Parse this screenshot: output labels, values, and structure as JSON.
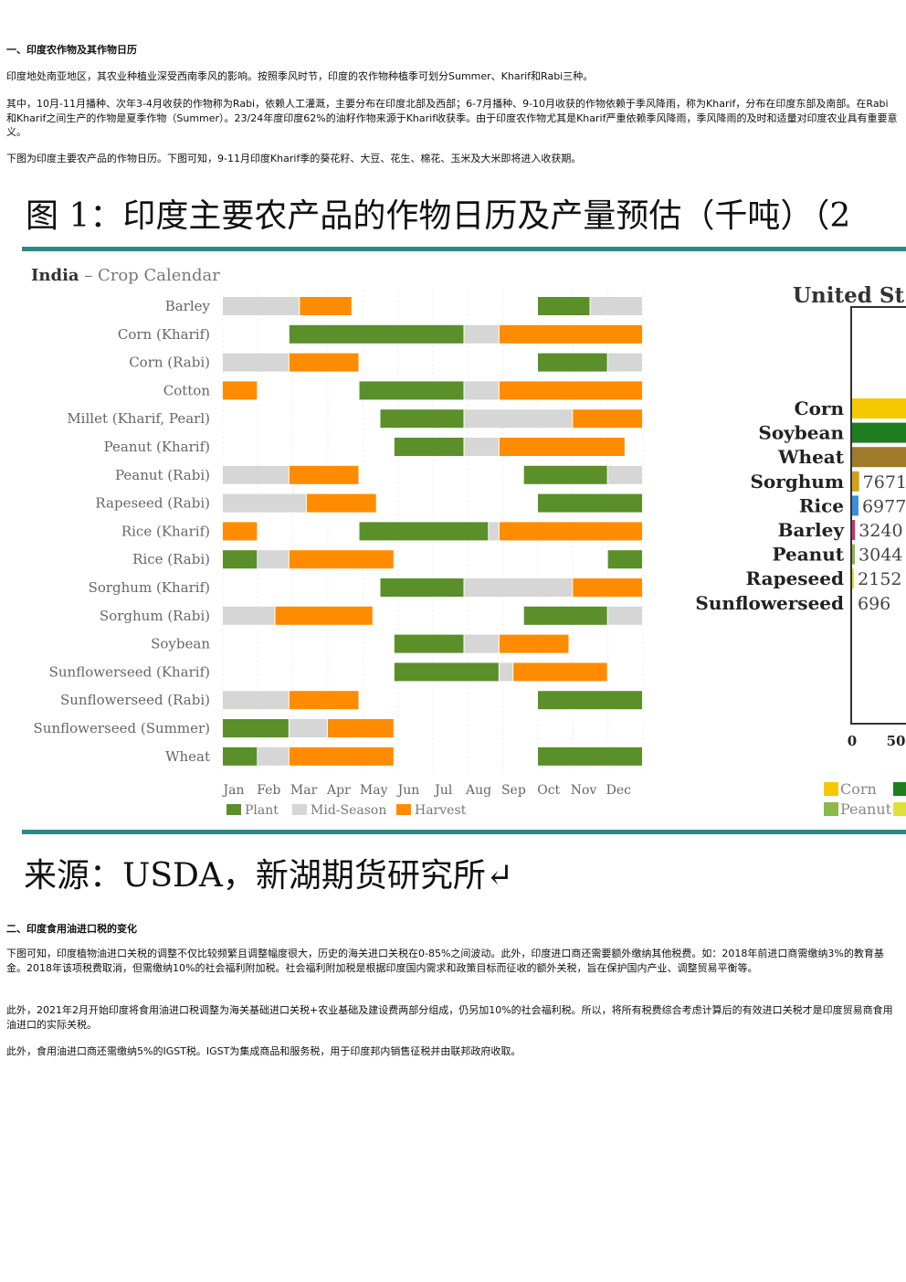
{
  "section1": {
    "heading": "一、印度农作物及其作物日历",
    "p1": "印度地处南亚地区，其农业种植业深受西南季风的影响。按照季风时节，印度的农作物种植季可划分Summer、Kharif和Rabi三种。",
    "p2": "其中，10月-11月播种、次年3-4月收获的作物称为Rabi，依赖人工灌溉，主要分布在印度北部及西部；6-7月播种、9-10月收获的作物依赖于季风降雨，称为Kharif，分布在印度东部及南部。在Rabi和Kharif之间生产的作物是夏季作物（Summer）。23/24年度印度62%的油籽作物来源于Kharif收获季。由于印度农作物尤其是Kharif严重依赖季风降雨，季风降雨的及时和适量对印度农业具有重要意义。",
    "p3": "下图为印度主要农产品的作物日历。下图可知，9-11月印度Kharif季的葵花籽、大豆、花生、棉花、玉米及大米即将进入收获期。"
  },
  "figure": {
    "title": "图 1：印度主要农产品的作物日历及产量预估（千吨）（2",
    "source": "来源：USDA，新湖期货研究所↵",
    "right_title": "United St",
    "right_axis_ticks": [
      "0",
      "50"
    ],
    "right_legend": [
      "Corn",
      "Peanut"
    ],
    "colors": {
      "plant": "#5a8f29",
      "mid": "#d6d6d6",
      "harvest": "#ff8c00",
      "teal": "#2a8a86"
    }
  },
  "chart_data": [
    {
      "type": "bar",
      "title": "India – Crop Calendar",
      "months": [
        "Jan",
        "Feb",
        "Mar",
        "Apr",
        "May",
        "Jun",
        "Jul",
        "Aug",
        "Sep",
        "Oct",
        "Nov",
        "Dec"
      ],
      "legend": [
        "Plant",
        "Mid-Season",
        "Harvest"
      ],
      "crops": [
        {
          "name": "Barley",
          "segments": [
            [
              "mid",
              1,
              3.2
            ],
            [
              "harvest",
              3.2,
              4.7
            ],
            [
              "plant",
              10,
              11.5
            ],
            [
              "mid",
              11.5,
              13
            ]
          ]
        },
        {
          "name": "Corn (Kharif)",
          "segments": [
            [
              "plant",
              2.9,
              7.9
            ],
            [
              "mid",
              7.9,
              8.9
            ],
            [
              "harvest",
              8.9,
              13
            ]
          ]
        },
        {
          "name": "Corn (Rabi)",
          "segments": [
            [
              "mid",
              1,
              2.9
            ],
            [
              "harvest",
              2.9,
              4.9
            ],
            [
              "plant",
              10,
              12
            ],
            [
              "mid",
              12,
              13
            ]
          ]
        },
        {
          "name": "Cotton",
          "segments": [
            [
              "harvest",
              1,
              2
            ],
            [
              "plant",
              4.9,
              7.9
            ],
            [
              "mid",
              7.9,
              8.9
            ],
            [
              "harvest",
              8.9,
              13
            ]
          ]
        },
        {
          "name": "Millet (Kharif, Pearl)",
          "segments": [
            [
              "plant",
              5.5,
              7.9
            ],
            [
              "mid",
              7.9,
              11
            ],
            [
              "harvest",
              11,
              13
            ]
          ]
        },
        {
          "name": "Peanut (Kharif)",
          "segments": [
            [
              "plant",
              5.9,
              7.9
            ],
            [
              "mid",
              7.9,
              8.9
            ],
            [
              "harvest",
              8.9,
              12.5
            ]
          ]
        },
        {
          "name": "Peanut (Rabi)",
          "segments": [
            [
              "mid",
              1,
              2.9
            ],
            [
              "harvest",
              2.9,
              4.9
            ],
            [
              "plant",
              9.6,
              12
            ],
            [
              "mid",
              12,
              13
            ]
          ]
        },
        {
          "name": "Rapeseed (Rabi)",
          "segments": [
            [
              "mid",
              1,
              3.4
            ],
            [
              "harvest",
              3.4,
              5.4
            ],
            [
              "plant",
              10,
              13
            ]
          ]
        },
        {
          "name": "Rice (Kharif)",
          "segments": [
            [
              "harvest",
              1,
              2
            ],
            [
              "plant",
              4.9,
              8.6
            ],
            [
              "mid",
              8.6,
              8.9
            ],
            [
              "harvest",
              8.9,
              13
            ]
          ]
        },
        {
          "name": "Rice (Rabi)",
          "segments": [
            [
              "plant",
              1,
              2
            ],
            [
              "mid",
              2,
              2.9
            ],
            [
              "harvest",
              2.9,
              5.9
            ],
            [
              "plant",
              12,
              13
            ]
          ]
        },
        {
          "name": "Sorghum (Kharif)",
          "segments": [
            [
              "plant",
              5.5,
              7.9
            ],
            [
              "mid",
              7.9,
              11
            ],
            [
              "harvest",
              11,
              13
            ]
          ]
        },
        {
          "name": "Sorghum (Rabi)",
          "segments": [
            [
              "mid",
              1,
              2.5
            ],
            [
              "harvest",
              2.5,
              5.3
            ],
            [
              "plant",
              9.6,
              12
            ],
            [
              "mid",
              12,
              13
            ]
          ]
        },
        {
          "name": "Soybean",
          "segments": [
            [
              "plant",
              5.9,
              7.9
            ],
            [
              "mid",
              7.9,
              8.9
            ],
            [
              "harvest",
              8.9,
              10.9
            ]
          ]
        },
        {
          "name": "Sunflowerseed (Kharif)",
          "segments": [
            [
              "plant",
              5.9,
              8.9
            ],
            [
              "mid",
              8.9,
              9.3
            ],
            [
              "harvest",
              9.3,
              12
            ]
          ]
        },
        {
          "name": "Sunflowerseed (Rabi)",
          "segments": [
            [
              "mid",
              1,
              2.9
            ],
            [
              "harvest",
              2.9,
              4.9
            ],
            [
              "plant",
              10,
              13
            ]
          ]
        },
        {
          "name": "Sunflowerseed (Summer)",
          "segments": [
            [
              "plant",
              1,
              2.9
            ],
            [
              "mid",
              2.9,
              4
            ],
            [
              "harvest",
              4,
              5.9
            ]
          ]
        },
        {
          "name": "Wheat",
          "segments": [
            [
              "plant",
              1,
              2
            ],
            [
              "mid",
              2,
              2.9
            ],
            [
              "harvest",
              2.9,
              5.9
            ],
            [
              "plant",
              10,
              13
            ]
          ]
        }
      ]
    },
    {
      "type": "bar",
      "title": "United St",
      "categories": [
        "Corn",
        "Soybean",
        "Wheat",
        "Sorghum",
        "Rice",
        "Barley",
        "Peanut",
        "Rapeseed",
        "Sunflowerseed"
      ],
      "values": [
        null,
        null,
        null,
        7671,
        6977,
        3240,
        3044,
        2152,
        696
      ],
      "labels": [
        "",
        "",
        "",
        "7671",
        "6977",
        "3240",
        "3044",
        "2152",
        "696"
      ],
      "bar_colors": [
        "#f5c800",
        "#1e7d1e",
        "#a07a2a",
        "#d4a017",
        "#3c8de0",
        "#c8386a",
        "#8cb84a",
        "#dde03a",
        ""
      ]
    }
  ],
  "section2": {
    "heading": "二、印度食用油进口税的变化",
    "p1": "下图可知，印度植物油进口关税的调整不仅比较频繁且调整幅度很大，历史的海关进口关税在0-85%之间波动。此外，印度进口商还需要额外缴纳其他税费。如：2018年前进口商需缴纳3%的教育基金。2018年该项税费取消，但需缴纳10%的社会福利附加税。社会福利附加税是根据印度国内需求和政策目标而征收的额外关税，旨在保护国内产业、调整贸易平衡等。",
    "p2": "此外，2021年2月开始印度将食用油进口税调整为海关基础进口关税+农业基础及建设费两部分组成，仍另加10%的社会福利税。所以，将所有税费综合考虑计算后的有效进口关税才是印度贸易商食用油进口的实际关税。",
    "p3": "此外，食用油进口商还需缴纳5%的IGST税。IGST为集成商品和服务税，用于印度邦内销售征税并由联邦政府收取。"
  }
}
